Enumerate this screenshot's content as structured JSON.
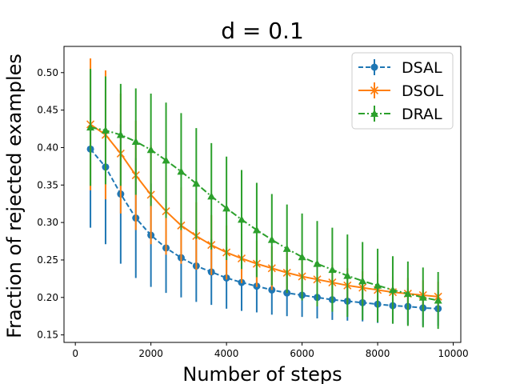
{
  "chart_data": {
    "type": "line",
    "title": "d = 0.1",
    "xlabel": "Number of steps",
    "ylabel": "Fraction of rejected examples",
    "xlim": [
      -300,
      10200
    ],
    "ylim": [
      0.14,
      0.535
    ],
    "xticks": [
      0,
      2000,
      4000,
      6000,
      8000,
      10000
    ],
    "yticks": [
      0.15,
      0.2,
      0.25,
      0.3,
      0.35,
      0.4,
      0.45,
      0.5
    ],
    "legend_position": "top-right",
    "x": [
      400,
      800,
      1200,
      1600,
      2000,
      2400,
      2800,
      3200,
      3600,
      4000,
      4400,
      4800,
      5200,
      5600,
      6000,
      6400,
      6800,
      7200,
      7600,
      8000,
      8400,
      8800,
      9200,
      9600
    ],
    "series": [
      {
        "name": "DSAL",
        "color": "#1f77b4",
        "linestyle": "dashed",
        "marker": "circle",
        "values": [
          0.398,
          0.374,
          0.338,
          0.306,
          0.283,
          0.266,
          0.253,
          0.242,
          0.234,
          0.226,
          0.22,
          0.215,
          0.21,
          0.206,
          0.203,
          0.2,
          0.197,
          0.195,
          0.193,
          0.191,
          0.189,
          0.188,
          0.186,
          0.185
        ],
        "errors": [
          0.105,
          0.103,
          0.093,
          0.08,
          0.069,
          0.06,
          0.053,
          0.048,
          0.044,
          0.041,
          0.038,
          0.035,
          0.033,
          0.031,
          0.029,
          0.028,
          0.027,
          0.026,
          0.025,
          0.025,
          0.024,
          0.024,
          0.024,
          0.023
        ]
      },
      {
        "name": "DSOL",
        "color": "#ff7f0e",
        "linestyle": "solid",
        "marker": "x",
        "values": [
          0.431,
          0.417,
          0.392,
          0.363,
          0.337,
          0.315,
          0.296,
          0.282,
          0.27,
          0.26,
          0.252,
          0.245,
          0.239,
          0.233,
          0.228,
          0.224,
          0.22,
          0.216,
          0.213,
          0.21,
          0.207,
          0.205,
          0.203,
          0.201
        ],
        "errors": [
          0.088,
          0.086,
          0.08,
          0.073,
          0.066,
          0.058,
          0.051,
          0.045,
          0.04,
          0.036,
          0.033,
          0.031,
          0.029,
          0.027,
          0.026,
          0.025,
          0.024,
          0.023,
          0.022,
          0.022,
          0.021,
          0.021,
          0.02,
          0.02
        ]
      },
      {
        "name": "DRAL",
        "color": "#2ca02c",
        "linestyle": "dashdot",
        "marker": "triangle",
        "values": [
          0.427,
          0.423,
          0.417,
          0.408,
          0.397,
          0.383,
          0.368,
          0.352,
          0.335,
          0.319,
          0.304,
          0.29,
          0.277,
          0.265,
          0.254,
          0.245,
          0.237,
          0.229,
          0.222,
          0.216,
          0.21,
          0.205,
          0.2,
          0.196
        ],
        "errors": [
          0.078,
          0.072,
          0.068,
          0.071,
          0.075,
          0.077,
          0.078,
          0.074,
          0.071,
          0.069,
          0.066,
          0.063,
          0.061,
          0.059,
          0.058,
          0.057,
          0.056,
          0.055,
          0.052,
          0.049,
          0.045,
          0.043,
          0.04,
          0.038
        ]
      }
    ]
  }
}
